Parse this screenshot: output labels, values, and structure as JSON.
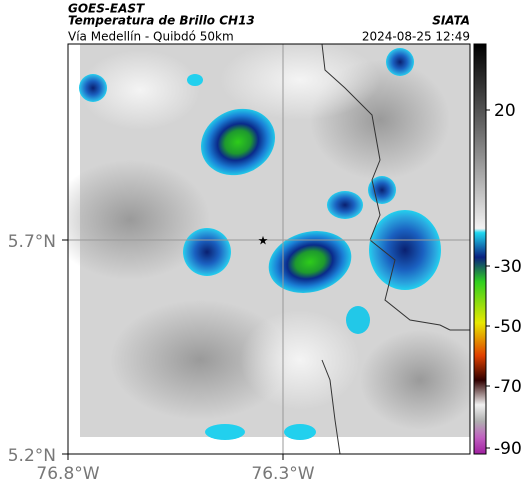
{
  "header": {
    "satellite": "GOES-EAST",
    "product": "Temperatura de Brillo CH13",
    "route": "Vía Medellín - Quibdó 50km",
    "source": "SIATA",
    "timestamp": "2024-08-25 12:49"
  },
  "axes": {
    "y_ticks": [
      "5.7°N",
      "5.2°N"
    ],
    "x_ticks": [
      "76.8°W",
      "76.3°W"
    ]
  },
  "colorbar": {
    "ticks": [
      "20",
      "-30",
      "-50",
      "-70",
      "-90"
    ]
  }
}
